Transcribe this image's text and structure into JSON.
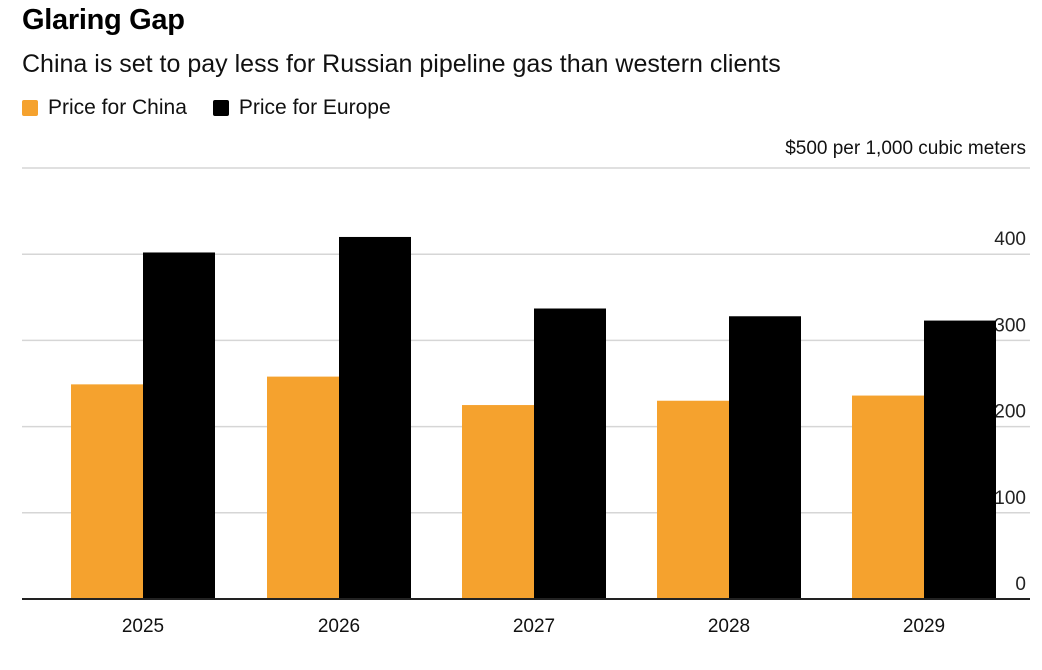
{
  "header": {
    "title": "Glaring Gap",
    "subtitle": "China is set to pay less for Russian pipeline gas than western clients",
    "unit_note": "$500 per 1,000 cubic meters"
  },
  "colors": {
    "china": "#f5a22e",
    "europe": "#000000",
    "grid": "#d6d6d6",
    "axis": "#222222"
  },
  "chart_data": {
    "type": "bar",
    "title": "Glaring Gap",
    "subtitle": "China is set to pay less for Russian pipeline gas than western clients",
    "unit_note": "$500 per 1,000 cubic meters",
    "categories": [
      "2025",
      "2026",
      "2027",
      "2028",
      "2029"
    ],
    "series": [
      {
        "name": "Price for China",
        "color": "#f5a22e",
        "values": [
          249,
          258,
          225,
          230,
          236
        ]
      },
      {
        "name": "Price for Europe",
        "color": "#000000",
        "values": [
          402,
          420,
          337,
          328,
          323
        ]
      }
    ],
    "yticks": [
      "0",
      "100",
      "200",
      "300",
      "400"
    ],
    "ylim": [
      0,
      500
    ],
    "grid": true,
    "legend_position": "top-left",
    "yaxis_side": "right"
  }
}
